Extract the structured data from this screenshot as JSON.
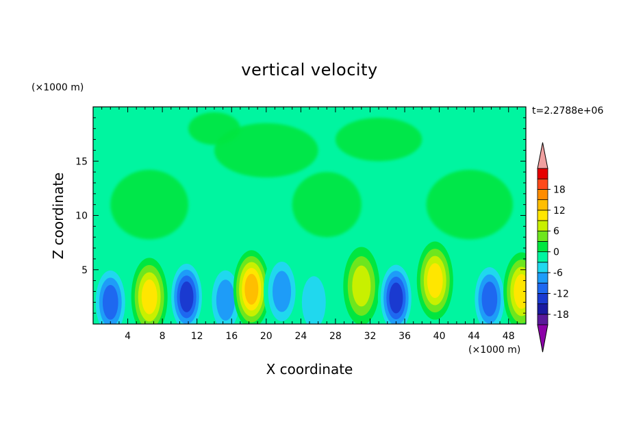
{
  "chart_data": {
    "type": "heatmap",
    "title": "vertical velocity",
    "xlabel": "X coordinate",
    "ylabel": "Z coordinate",
    "x_unit": "(×1000 m)",
    "y_unit": "(×1000 m)",
    "time_label": "t=2.2788e+06",
    "xlim": [
      0,
      50
    ],
    "ylim": [
      0,
      20
    ],
    "x_ticks": [
      4,
      8,
      12,
      16,
      20,
      24,
      28,
      32,
      36,
      40,
      44,
      48
    ],
    "y_ticks": [
      5,
      10,
      15
    ],
    "colorbar": {
      "levels": [
        -21,
        -18,
        -15,
        -12,
        -9,
        -6,
        -3,
        0,
        3,
        6,
        9,
        12,
        15,
        18,
        21
      ],
      "tick_labels": [
        "18",
        "12",
        "6",
        "0",
        "-6",
        "-12",
        "-18"
      ],
      "colors": [
        "#5a1a9a",
        "#1a1aa0",
        "#1a3ad0",
        "#1e68f0",
        "#1e9cf8",
        "#20d8ee",
        "#00f5a0",
        "#00e640",
        "#6ee61e",
        "#c8f000",
        "#ffe600",
        "#ffbe00",
        "#ff8c00",
        "#ff4a1a",
        "#e60000"
      ],
      "below_color": "#8c00a8",
      "above_color": "#f0a0a0"
    },
    "features": [
      {
        "x": 2.0,
        "z": 2.0,
        "value": -10
      },
      {
        "x": 6.5,
        "z": 2.5,
        "value": 9
      },
      {
        "x": 10.8,
        "z": 2.5,
        "value": -12
      },
      {
        "x": 15.3,
        "z": 2.2,
        "value": -6
      },
      {
        "x": 18.3,
        "z": 3.2,
        "value": 12
      },
      {
        "x": 21.8,
        "z": 3.0,
        "value": -7
      },
      {
        "x": 25.5,
        "z": 2.0,
        "value": -4
      },
      {
        "x": 31.0,
        "z": 3.5,
        "value": 8
      },
      {
        "x": 35.0,
        "z": 2.4,
        "value": -12
      },
      {
        "x": 39.5,
        "z": 4.0,
        "value": 9
      },
      {
        "x": 45.8,
        "z": 2.3,
        "value": -11
      },
      {
        "x": 49.5,
        "z": 3.0,
        "value": 9
      }
    ]
  }
}
